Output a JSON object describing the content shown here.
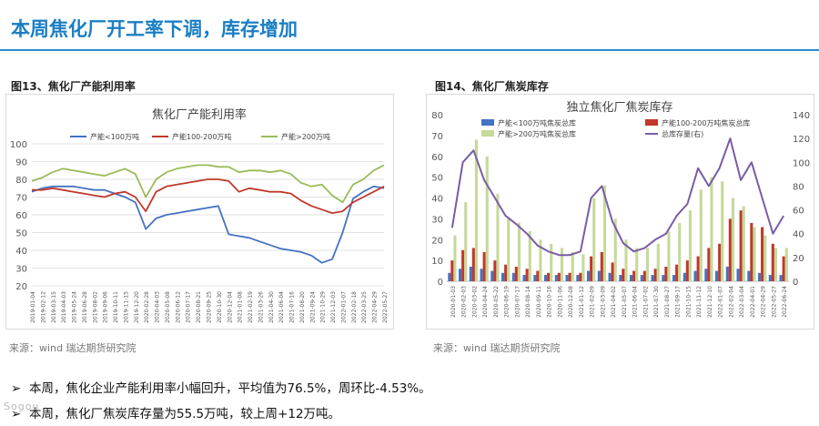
{
  "page": {
    "title": "本周焦化厂开工率下调，库存增加",
    "bullets": [
      "本周，焦化企业产能利用率小幅回升，平均值为76.5%，周环比-4.53%。",
      "本周，焦化厂焦炭库存量为55.5万吨，较上周+12万吨。"
    ],
    "watermark": "Sogou"
  },
  "figures": [
    {
      "caption": "图13、焦化厂产能利用率",
      "source": "来源：wind  瑞达期货研究院"
    },
    {
      "caption": "图14、焦化厂焦炭库存",
      "source": "来源：wind  瑞达期货研究院"
    }
  ],
  "chart_data": [
    {
      "type": "line",
      "title": "焦化厂产能利用率",
      "ylim": [
        20,
        100
      ],
      "yticks": [
        20,
        30,
        40,
        50,
        60,
        70,
        80,
        90,
        100
      ],
      "categories": [
        "2019-01-04",
        "2019-02-12",
        "2019-03-15",
        "2019-04-03",
        "2019-05-24",
        "2019-06-28",
        "2019-08-02",
        "2019-09-06",
        "2019-10-11",
        "2019-11-15",
        "2019-12-20",
        "2020-02-28",
        "2020-04-03",
        "2020-05-08",
        "2020-06-12",
        "2020-07-17",
        "2020-08-21",
        "2020-09-25",
        "2020-10-30",
        "2020-12-04",
        "2021-01-08",
        "2021-02-19",
        "2021-03-26",
        "2021-04-30",
        "2021-06-04",
        "2021-07-16",
        "2021-08-20",
        "2021-09-24",
        "2021-10-29",
        "2021-12-03",
        "2022-01-07",
        "2022-02-18",
        "2022-03-25",
        "2022-04-29",
        "2022-05-27"
      ],
      "series": [
        {
          "name": "产能<100万吨",
          "color": "#4472c4",
          "values": [
            73,
            75,
            76,
            76,
            76,
            75,
            74,
            74,
            72,
            70,
            67,
            52,
            58,
            60,
            61,
            62,
            63,
            64,
            65,
            49,
            48,
            47,
            45,
            43,
            41,
            40,
            39,
            37,
            33,
            35,
            50,
            69,
            73,
            76,
            75
          ]
        },
        {
          "name": "产能100-200万吨",
          "color": "#c0392b",
          "values": [
            74,
            74,
            75,
            74,
            73,
            72,
            71,
            70,
            72,
            73,
            70,
            62,
            73,
            76,
            77,
            78,
            79,
            80,
            80,
            79,
            73,
            75,
            74,
            73,
            73,
            72,
            68,
            65,
            63,
            61,
            62,
            67,
            70,
            73,
            76
          ]
        },
        {
          "name": "产能>200万吨",
          "color": "#9bbb59",
          "values": [
            79,
            81,
            84,
            86,
            85,
            84,
            83,
            82,
            84,
            86,
            83,
            70,
            80,
            84,
            86,
            87,
            88,
            88,
            87,
            87,
            84,
            85,
            85,
            84,
            85,
            83,
            78,
            76,
            77,
            71,
            67,
            77,
            80,
            85,
            88
          ]
        }
      ]
    },
    {
      "type": "bar",
      "title": "独立焦化厂焦炭库存",
      "ylim": [
        0,
        80
      ],
      "yticks": [
        0,
        10,
        20,
        30,
        40,
        50,
        60,
        70,
        80
      ],
      "y2lim": [
        0,
        140
      ],
      "y2ticks": [
        0,
        20,
        40,
        60,
        80,
        100,
        120,
        140
      ],
      "categories": [
        "2020-01-03",
        "2020-02-03",
        "2020-03-02",
        "2020-04-24",
        "2020-05-22",
        "2020-06-19",
        "2020-07-17",
        "2020-08-14",
        "2020-09-11",
        "2020-10-16",
        "2020-11-06",
        "2020-12-08",
        "2021-01-12",
        "2021-02-09",
        "2021-03-09",
        "2021-04-02",
        "2021-05-07",
        "2021-06-04",
        "2021-07-02",
        "2021-07-30",
        "2021-08-27",
        "2021-09-17",
        "2021-10-15",
        "2021-11-12",
        "2021-12-10",
        "2022-01-07",
        "2022-02-04",
        "2022-03-04",
        "2022-04-01",
        "2022-04-29",
        "2022-05-27",
        "2022-06-24"
      ],
      "legend": [
        "产能<100万吨焦炭总库",
        "产能100-200万吨焦炭总库",
        "产能>200万吨焦炭总库",
        "总库存量(右)"
      ],
      "series": [
        {
          "name": "产能<100万吨焦炭总库",
          "color": "#4472c4",
          "values": [
            4,
            6,
            7,
            6,
            5,
            4,
            4,
            3,
            3,
            3,
            3,
            3,
            3,
            5,
            5,
            4,
            3,
            3,
            3,
            3,
            3,
            3,
            4,
            5,
            6,
            5,
            7,
            6,
            5,
            4,
            3,
            3
          ]
        },
        {
          "name": "产能100-200万吨焦炭总库",
          "color": "#c0392b",
          "values": [
            10,
            15,
            16,
            14,
            10,
            8,
            7,
            6,
            5,
            4,
            4,
            4,
            4,
            12,
            14,
            9,
            6,
            5,
            5,
            6,
            7,
            8,
            10,
            12,
            16,
            18,
            30,
            34,
            28,
            26,
            18,
            12
          ]
        },
        {
          "name": "产能>200万吨焦炭总库",
          "color": "#c6d99a",
          "values": [
            22,
            38,
            68,
            60,
            42,
            30,
            28,
            24,
            20,
            18,
            16,
            14,
            13,
            40,
            46,
            30,
            20,
            16,
            16,
            18,
            24,
            28,
            34,
            44,
            50,
            48,
            40,
            36,
            26,
            22,
            16,
            16
          ]
        },
        {
          "name": "总库存量(右)",
          "color": "#7a5ca6",
          "axis": "right",
          "values": [
            45,
            100,
            110,
            85,
            70,
            55,
            48,
            40,
            30,
            25,
            22,
            22,
            25,
            70,
            80,
            50,
            32,
            25,
            28,
            35,
            40,
            55,
            65,
            95,
            80,
            95,
            120,
            85,
            100,
            70,
            40,
            55
          ]
        }
      ]
    }
  ]
}
